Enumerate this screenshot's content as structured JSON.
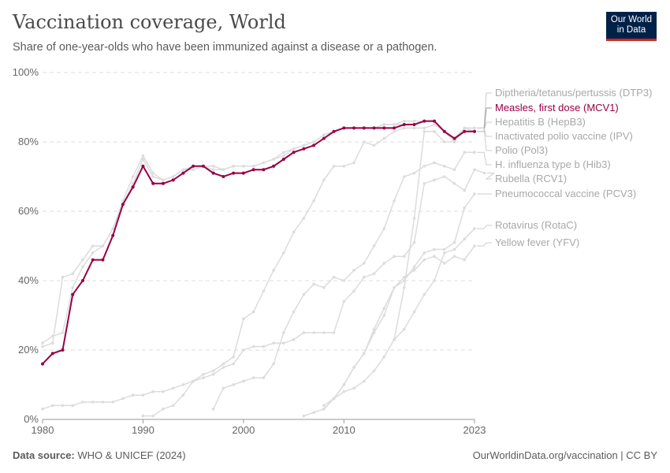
{
  "header": {
    "title": "Vaccination coverage, World",
    "subtitle": "Share of one-year-olds who have been immunized against a disease or a pathogen.",
    "logo_text": "Our World in Data"
  },
  "footer": {
    "source_label": "Data source:",
    "source": "WHO & UNICEF (2024)",
    "link": "OurWorldinData.org/vaccination | CC BY"
  },
  "colors": {
    "highlight": "#970046",
    "muted": "#dcdcdc",
    "label_muted": "#a8a8a8"
  },
  "chart_data": {
    "type": "line",
    "title": "Vaccination coverage, World",
    "xlim": [
      1980,
      2023
    ],
    "ylim": [
      0,
      100
    ],
    "y_ticks": [
      "0%",
      "20%",
      "40%",
      "60%",
      "80%",
      "100%"
    ],
    "x_ticks": [
      "1980",
      "1990",
      "2000",
      "2010",
      "2023"
    ],
    "grid": "horizontal dashed",
    "legend": "right (line end labels)",
    "highlighted": "Measles, first dose (MCV1)",
    "series": [
      {
        "name": "Diptheria/tetanus/pertussis (DTP3)",
        "start": 1980,
        "values": [
          21,
          22,
          41,
          42,
          46,
          50,
          50,
          55,
          63,
          70,
          76,
          71,
          69,
          70,
          72,
          73,
          73,
          72,
          72,
          73,
          73,
          73,
          74,
          75,
          76,
          78,
          79,
          80,
          82,
          83,
          84,
          84,
          84,
          84,
          85,
          85,
          86,
          86,
          86,
          86,
          83,
          81,
          84,
          84
        ]
      },
      {
        "name": "Measles, first dose (MCV1)",
        "start": 1980,
        "values": [
          16,
          19,
          20,
          36,
          40,
          46,
          46,
          53,
          62,
          67,
          73,
          68,
          68,
          69,
          71,
          73,
          73,
          71,
          70,
          71,
          71,
          72,
          72,
          73,
          75,
          77,
          78,
          79,
          81,
          83,
          84,
          84,
          84,
          84,
          84,
          84,
          85,
          85,
          86,
          86,
          83,
          81,
          83,
          83
        ]
      },
      {
        "name": "Hepatitis B (HepB3)",
        "start": 1990,
        "values": [
          1,
          1,
          3,
          4,
          7,
          11,
          13,
          14,
          16,
          18,
          29,
          31,
          37,
          43,
          48,
          54,
          58,
          63,
          69,
          73,
          73,
          74,
          80,
          79,
          81,
          83,
          84,
          84,
          84,
          85,
          83,
          80,
          84,
          83
        ]
      },
      {
        "name": "Inactivated polio vaccine (IPV)",
        "start": 2015,
        "values": [
          23,
          38,
          58,
          83,
          83,
          80,
          80,
          84,
          84
        ]
      },
      {
        "name": "Polio (Pol3)",
        "start": 1980,
        "values": [
          22,
          24,
          25,
          38,
          44,
          48,
          50,
          55,
          62,
          68,
          75,
          70,
          69,
          70,
          72,
          72,
          73,
          73,
          72,
          73,
          73,
          73,
          74,
          75,
          77,
          78,
          79,
          80,
          82,
          83,
          84,
          84,
          84,
          84,
          85,
          85,
          85,
          85,
          86,
          86,
          83,
          80,
          84,
          84
        ]
      },
      {
        "name": "H. influenza type b (Hib3)",
        "start": 1997,
        "values": [
          3,
          9,
          10,
          11,
          12,
          12,
          16,
          25,
          31,
          36,
          39,
          38,
          41,
          40,
          43,
          45,
          50,
          55,
          63,
          70,
          71,
          73,
          74,
          73,
          72,
          77,
          77
        ]
      },
      {
        "name": "Rubella (RCV1)",
        "start": 1980,
        "values": [
          3,
          4,
          4,
          4,
          5,
          5,
          5,
          5,
          6,
          7,
          7,
          8,
          8,
          9,
          10,
          11,
          12,
          13,
          15,
          16,
          20,
          21,
          21,
          22,
          22,
          23,
          25,
          25,
          25,
          25,
          34,
          37,
          41,
          42,
          45,
          47,
          47,
          51,
          68,
          69,
          70,
          68,
          66,
          72,
          71
        ]
      },
      {
        "name": "Pneumococcal vaccine (PCV3)",
        "start": 2008,
        "values": [
          3,
          6,
          10,
          15,
          19,
          26,
          32,
          38,
          40,
          44,
          48,
          49,
          49,
          51,
          61,
          65
        ]
      },
      {
        "name": "Rotavirus (RotaC)",
        "start": 2006,
        "values": [
          1,
          2,
          3,
          6,
          8,
          9,
          11,
          14,
          18,
          23,
          26,
          31,
          36,
          40,
          48,
          49,
          52,
          55
        ]
      },
      {
        "name": "Yellow fever (YFV)",
        "start": 2008,
        "values": [
          4,
          6,
          10,
          15,
          19,
          25,
          30,
          38,
          41,
          43,
          46,
          47,
          45,
          47,
          46,
          50
        ]
      }
    ]
  }
}
